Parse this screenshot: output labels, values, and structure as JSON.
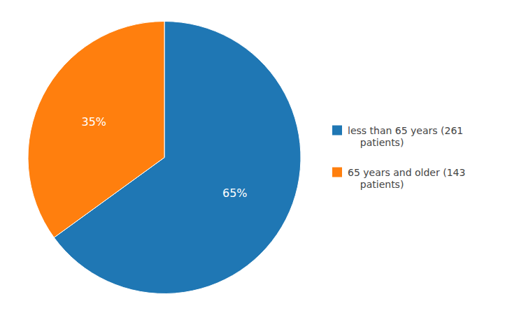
{
  "chart_data": {
    "type": "pie",
    "categories": [
      "less than 65 years (261\n    patients)",
      "65 years and older (143\n    patients)"
    ],
    "values": [
      65,
      35
    ],
    "value_labels": [
      "65%",
      "35%"
    ],
    "data_labels": true,
    "legend": "right"
  }
}
